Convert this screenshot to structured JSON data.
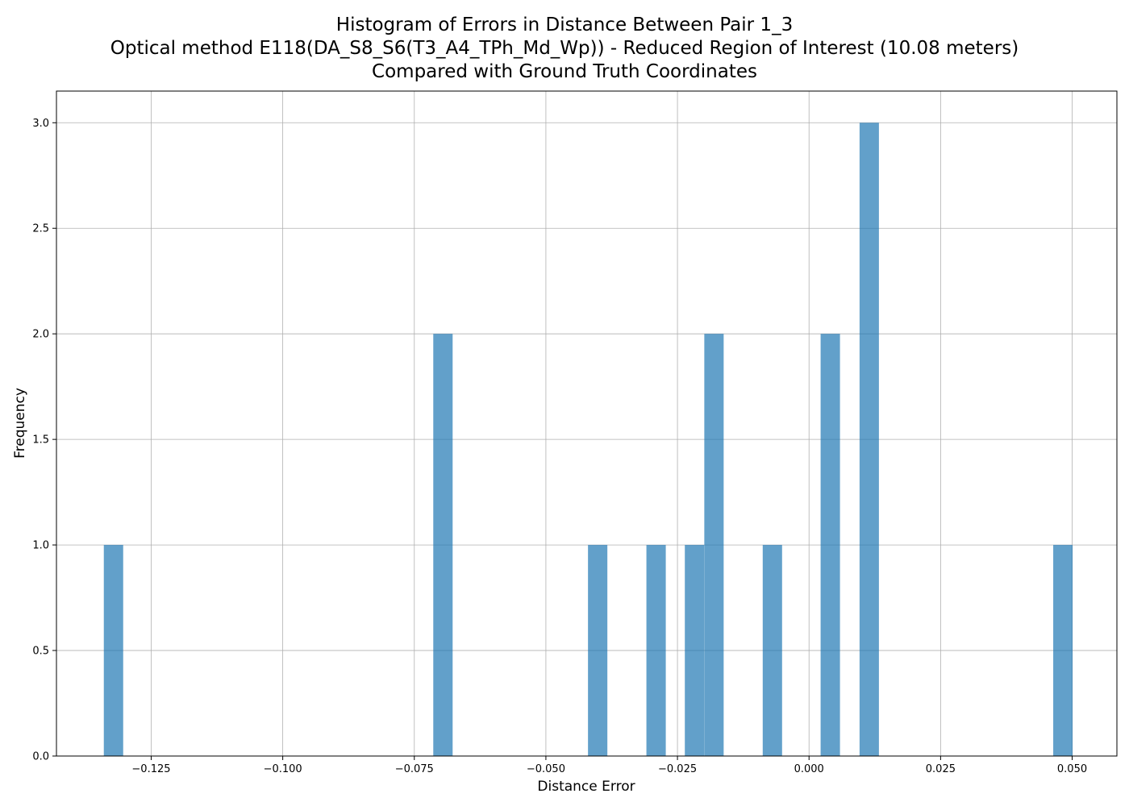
{
  "chart_data": {
    "type": "bar",
    "title": [
      "Histogram of Errors in Distance Between Pair 1_3",
      "Optical method E118(DA_S8_S6(T3_A4_TPh_Md_Wp)) - Reduced Region of Interest (10.08 meters)",
      "Compared with Ground Truth Coordinates"
    ],
    "xlabel": "Distance Error",
    "ylabel": "Frequency",
    "xlim": [
      -0.143,
      0.0585
    ],
    "ylim": [
      0,
      3.15
    ],
    "grid": true,
    "bar_color": "#1f77b4",
    "bar_opacity": 0.7,
    "bin_width": 0.00368,
    "x_ticks": [
      -0.125,
      -0.1,
      -0.075,
      -0.05,
      -0.025,
      0.0,
      0.025,
      0.05
    ],
    "x_tick_labels": [
      "−0.125",
      "−0.100",
      "−0.075",
      "−0.050",
      "−0.025",
      "0.000",
      "0.025",
      "0.050"
    ],
    "y_ticks": [
      0.0,
      0.5,
      1.0,
      1.5,
      2.0,
      2.5,
      3.0
    ],
    "y_tick_labels": [
      "0.0",
      "0.5",
      "1.0",
      "1.5",
      "2.0",
      "2.5",
      "3.0"
    ],
    "bins": [
      {
        "x_start": -0.134,
        "count": 1
      },
      {
        "x_start": -0.0714,
        "count": 2
      },
      {
        "x_start": -0.042,
        "count": 1
      },
      {
        "x_start": -0.0309,
        "count": 1
      },
      {
        "x_start": -0.0236,
        "count": 1
      },
      {
        "x_start": -0.0199,
        "count": 2
      },
      {
        "x_start": -0.0088,
        "count": 1
      },
      {
        "x_start": 0.0022,
        "count": 2
      },
      {
        "x_start": 0.0096,
        "count": 3
      },
      {
        "x_start": 0.0464,
        "count": 1
      }
    ]
  }
}
